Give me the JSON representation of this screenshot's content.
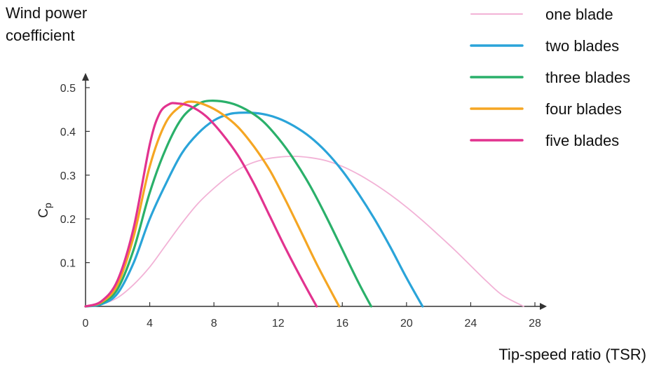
{
  "chart_data": {
    "type": "line",
    "title": "Wind power coefficient",
    "xlabel": "Tip-speed ratio (TSR)",
    "ylabel": "Cp",
    "xlim": [
      0,
      28
    ],
    "ylim": [
      0,
      0.5
    ],
    "xticks": [
      "0",
      "4",
      "8",
      "12",
      "16",
      "20",
      "24",
      "28"
    ],
    "yticks": [
      "0.1",
      "0.2",
      "0.3",
      "0.4",
      "0.5"
    ],
    "legend_position": "top-right",
    "grid": false,
    "series": [
      {
        "name": "one blade",
        "color": "#f2b2d6",
        "x": [
          0,
          1,
          2,
          3,
          4,
          5,
          6,
          7,
          8,
          9,
          10,
          11,
          12,
          13,
          14,
          15,
          16,
          17,
          18,
          19,
          20,
          21,
          22,
          23,
          24,
          25,
          26,
          27.3
        ],
        "y": [
          0,
          0.005,
          0.02,
          0.05,
          0.09,
          0.14,
          0.19,
          0.235,
          0.27,
          0.3,
          0.322,
          0.335,
          0.341,
          0.343,
          0.34,
          0.333,
          0.32,
          0.302,
          0.28,
          0.255,
          0.227,
          0.196,
          0.163,
          0.129,
          0.093,
          0.057,
          0.025,
          0
        ]
      },
      {
        "name": "two blades",
        "color": "#2aa4d9",
        "x": [
          0,
          1,
          2,
          3,
          4,
          5,
          6,
          7,
          8,
          9,
          10,
          11,
          12,
          13,
          14,
          15,
          16,
          17,
          18,
          19,
          20,
          21
        ],
        "y": [
          0,
          0.005,
          0.03,
          0.1,
          0.2,
          0.28,
          0.35,
          0.395,
          0.425,
          0.44,
          0.443,
          0.44,
          0.43,
          0.412,
          0.387,
          0.353,
          0.31,
          0.258,
          0.2,
          0.135,
          0.065,
          0
        ]
      },
      {
        "name": "three blades",
        "color": "#2ab06a",
        "x": [
          0,
          1,
          2,
          3,
          4,
          5,
          6,
          7,
          7.8,
          9,
          10,
          11,
          12,
          13,
          14,
          15,
          16,
          17,
          17.8
        ],
        "y": [
          0,
          0.008,
          0.04,
          0.13,
          0.26,
          0.36,
          0.43,
          0.462,
          0.47,
          0.465,
          0.45,
          0.425,
          0.385,
          0.335,
          0.275,
          0.205,
          0.13,
          0.055,
          0
        ]
      },
      {
        "name": "four blades",
        "color": "#f5a623",
        "x": [
          0,
          1,
          2,
          3,
          4,
          5,
          6,
          6.6,
          7.5,
          8.5,
          9.5,
          10.5,
          11.5,
          12.5,
          13.5,
          14.5,
          15.8
        ],
        "y": [
          0,
          0.01,
          0.05,
          0.16,
          0.32,
          0.42,
          0.46,
          0.468,
          0.46,
          0.44,
          0.41,
          0.365,
          0.31,
          0.24,
          0.165,
          0.09,
          0
        ]
      },
      {
        "name": "five blades",
        "color": "#e2338f",
        "x": [
          0,
          1,
          2,
          3,
          4,
          4.6,
          5.2,
          5.7,
          6.5,
          7.5,
          8.5,
          9.5,
          10.5,
          11.5,
          12.5,
          13.5,
          14.4
        ],
        "y": [
          0,
          0.012,
          0.06,
          0.18,
          0.37,
          0.44,
          0.462,
          0.464,
          0.458,
          0.435,
          0.395,
          0.345,
          0.28,
          0.205,
          0.13,
          0.06,
          0
        ]
      }
    ]
  }
}
